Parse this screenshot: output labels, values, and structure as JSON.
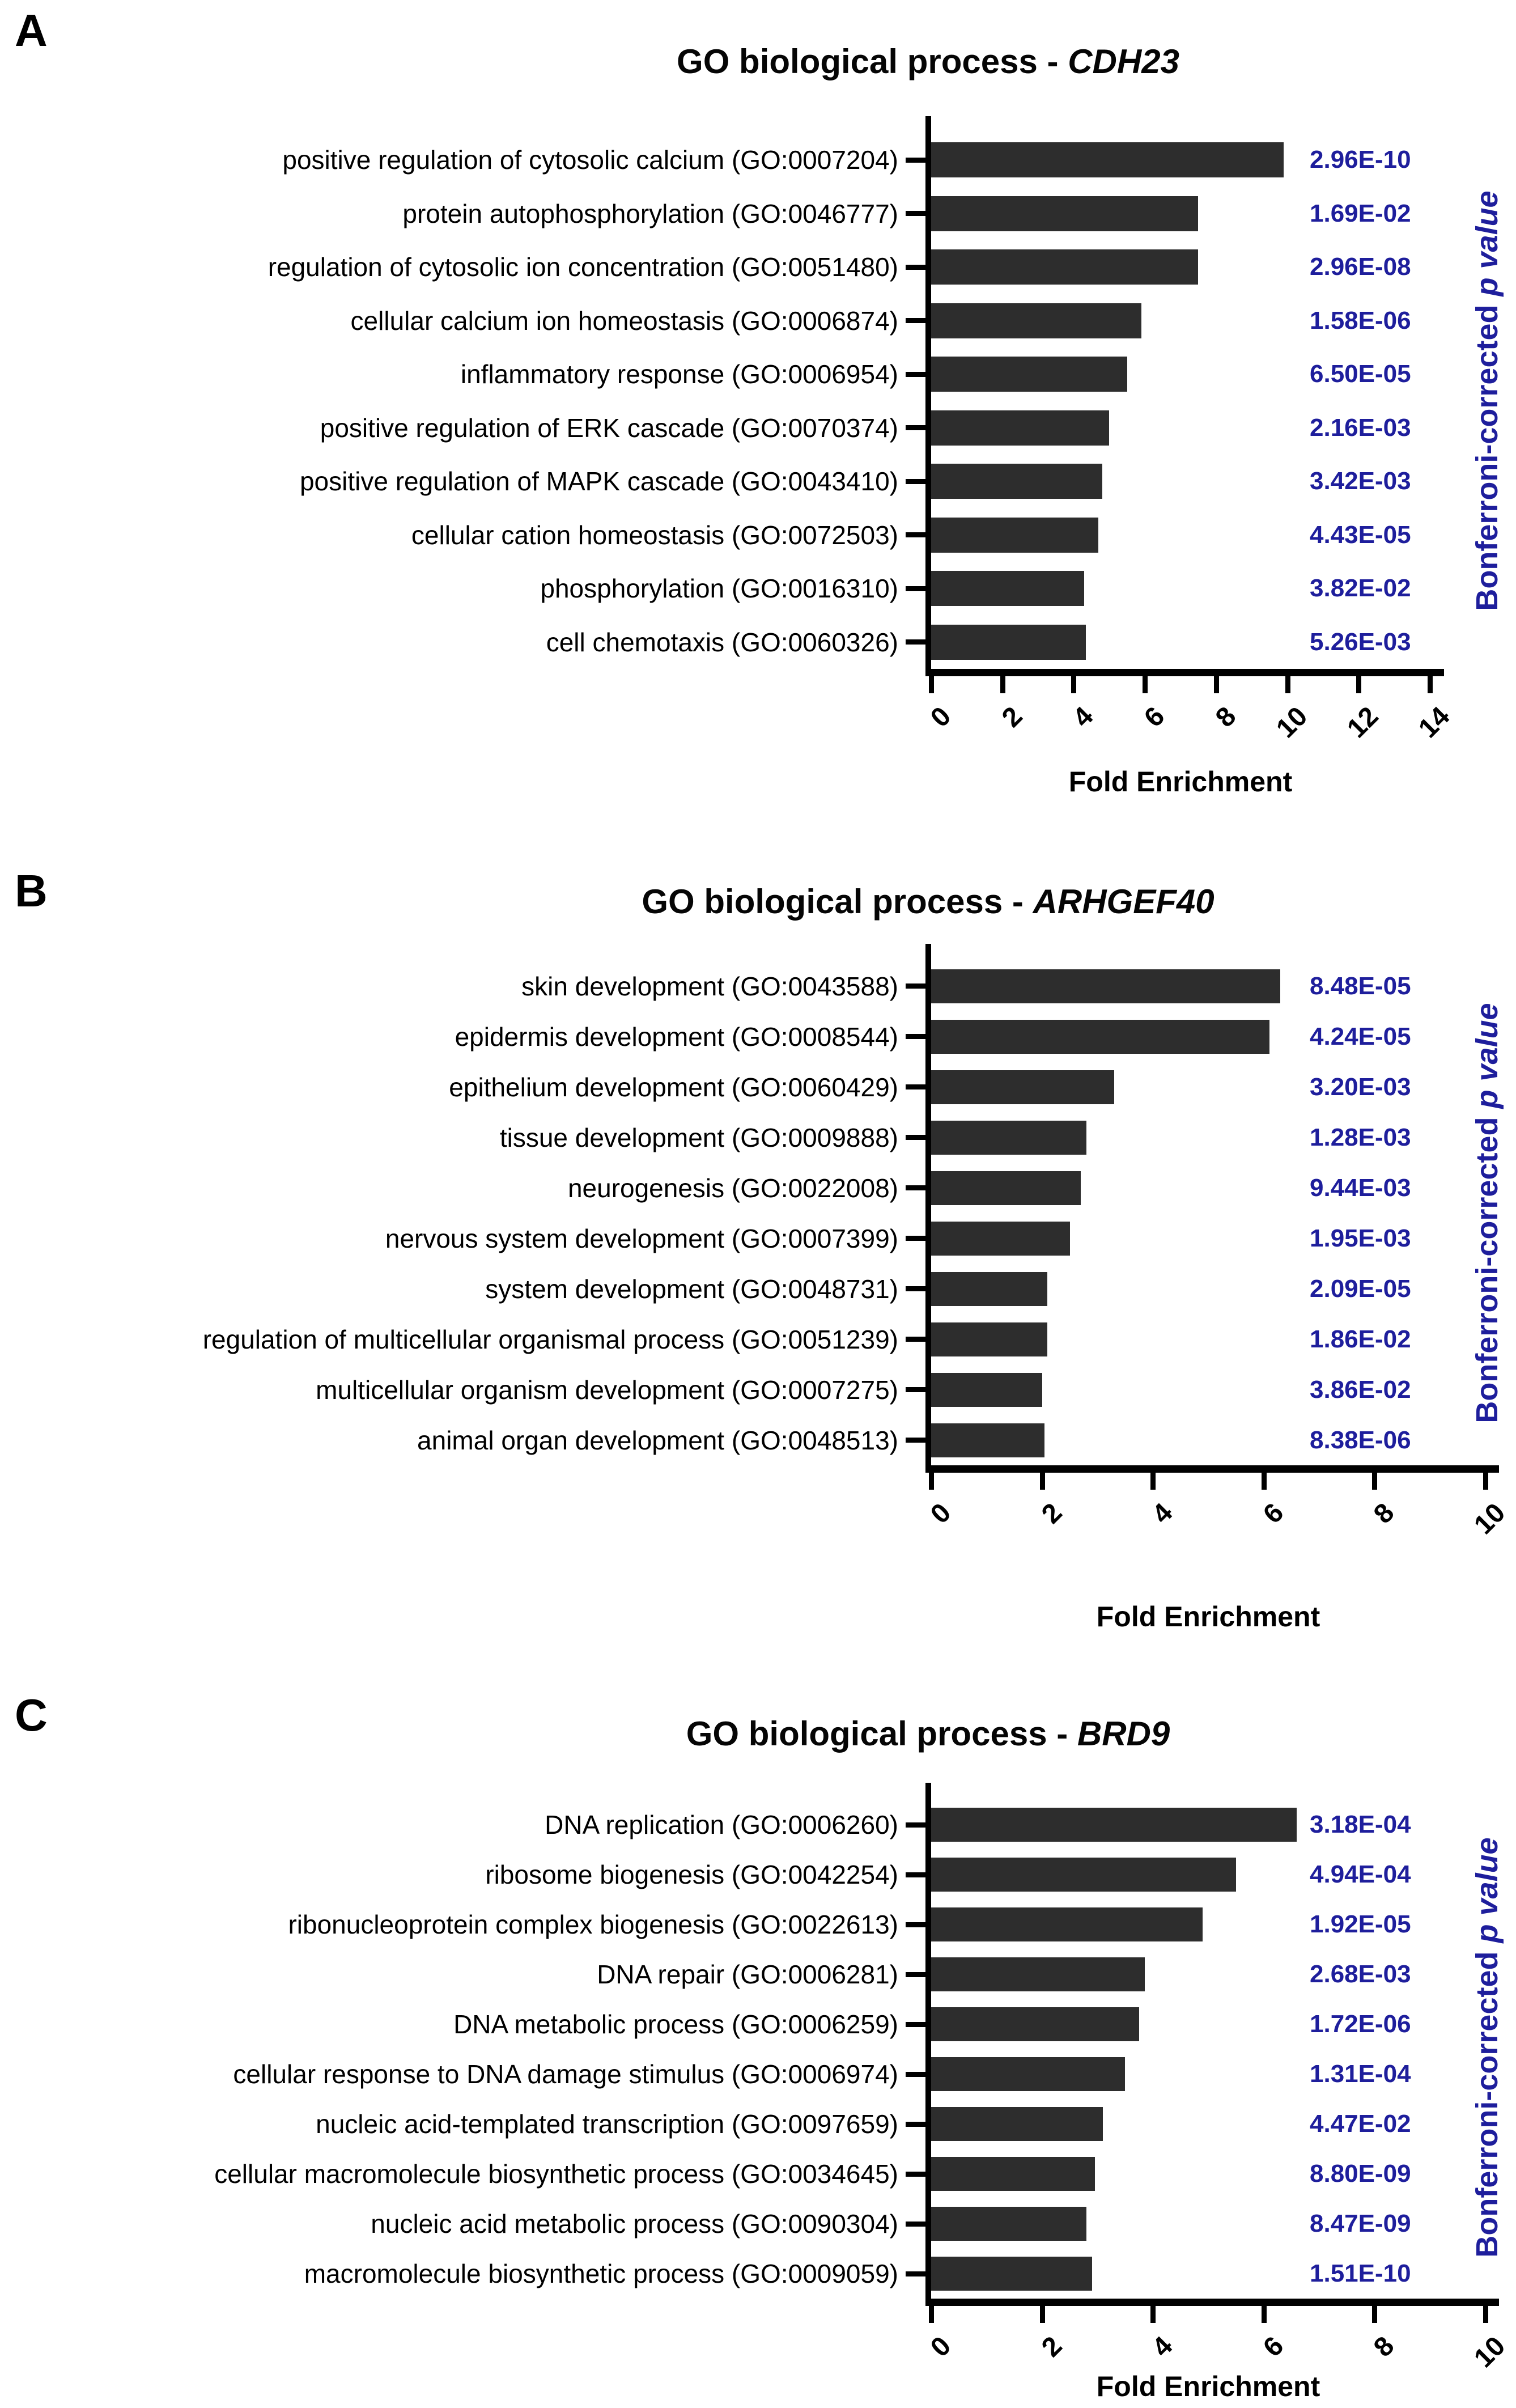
{
  "figure": {
    "panel_letters": [
      "A",
      "B",
      "C"
    ],
    "x_axis_label": "Fold Enrichment",
    "right_axis_label": "Bonferroni-corrected p value",
    "bar_color": "#2d2d2d",
    "p_value_color": "#1e1e9c",
    "axis_color": "#000000"
  },
  "chart_data": [
    {
      "type": "bar",
      "panel_letter": "A",
      "title": "GO biological process - CDH23",
      "title_prefix": "GO biological process - ",
      "gene": "CDH23",
      "orientation": "horizontal",
      "categories": [
        "positive regulation of cytosolic calcium (GO:0007204)",
        "protein autophosphorylation (GO:0046777)",
        "regulation of cytosolic ion concentration (GO:0051480)",
        "cellular calcium ion homeostasis (GO:0006874)",
        "inflammatory response (GO:0006954)",
        "positive regulation of ERK cascade (GO:0070374)",
        "positive regulation of MAPK cascade (GO:0043410)",
        "cellular cation homeostasis (GO:0072503)",
        "phosphorylation (GO:0016310)",
        "cell chemotaxis (GO:0060326)"
      ],
      "values": [
        9.9,
        7.5,
        7.5,
        5.9,
        5.5,
        5.0,
        4.8,
        4.7,
        4.3,
        4.35
      ],
      "p_value_labels": [
        "2.96E-10",
        "1.69E-02",
        "2.96E-08",
        "1.58E-06",
        "6.50E-05",
        "2.16E-03",
        "3.42E-03",
        "4.43E-05",
        "3.82E-02",
        "5.26E-03"
      ],
      "xlabel": "Fold Enrichment",
      "right_axis_label_plain": "Bonferroni-corrected",
      "right_axis_label_italic": "p value",
      "xlim": [
        0,
        14
      ],
      "xticks": [
        0,
        2,
        4,
        6,
        8,
        10,
        12,
        14
      ],
      "bar_color": "#2d2d2d",
      "p_value_color": "#1e1e9c",
      "grid": false,
      "legend": "none"
    },
    {
      "type": "bar",
      "panel_letter": "B",
      "title": "GO biological process - ARHGEF40",
      "title_prefix": "GO biological process - ",
      "gene": "ARHGEF40",
      "orientation": "horizontal",
      "categories": [
        "skin development (GO:0043588)",
        "epidermis development (GO:0008544)",
        "epithelium development (GO:0060429)",
        "tissue development (GO:0009888)",
        "neurogenesis (GO:0022008)",
        "nervous system development (GO:0007399)",
        "system development (GO:0048731)",
        "regulation of multicellular organismal process (GO:0051239)",
        "multicellular organism development (GO:0007275)",
        "animal organ development (GO:0048513)"
      ],
      "values": [
        6.3,
        6.1,
        3.3,
        2.8,
        2.7,
        2.5,
        2.1,
        2.1,
        2.0,
        2.05
      ],
      "p_value_labels": [
        "8.48E-05",
        "4.24E-05",
        "3.20E-03",
        "1.28E-03",
        "9.44E-03",
        "1.95E-03",
        "2.09E-05",
        "1.86E-02",
        "3.86E-02",
        "8.38E-06"
      ],
      "xlabel": "Fold Enrichment",
      "right_axis_label_plain": "Bonferroni-corrected",
      "right_axis_label_italic": "p value",
      "xlim": [
        0,
        10
      ],
      "xticks": [
        0,
        2,
        4,
        6,
        8,
        10
      ],
      "bar_color": "#2d2d2d",
      "p_value_color": "#1e1e9c",
      "grid": false,
      "legend": "none"
    },
    {
      "type": "bar",
      "panel_letter": "C",
      "title": "GO biological process - BRD9",
      "title_prefix": "GO biological process - ",
      "gene": "BRD9",
      "orientation": "horizontal",
      "categories": [
        "DNA replication (GO:0006260)",
        "ribosome biogenesis (GO:0042254)",
        "ribonucleoprotein complex biogenesis (GO:0022613)",
        "DNA repair (GO:0006281)",
        "DNA metabolic process (GO:0006259)",
        "cellular response to DNA damage stimulus (GO:0006974)",
        "nucleic acid-templated transcription (GO:0097659)",
        "cellular macromolecule biosynthetic process (GO:0034645)",
        "nucleic acid metabolic process (GO:0090304)",
        "macromolecule biosynthetic process (GO:0009059)"
      ],
      "values": [
        6.6,
        5.5,
        4.9,
        3.85,
        3.75,
        3.5,
        3.1,
        2.95,
        2.8,
        2.9
      ],
      "p_value_labels": [
        "3.18E-04",
        "4.94E-04",
        "1.92E-05",
        "2.68E-03",
        "1.72E-06",
        "1.31E-04",
        "4.47E-02",
        "8.80E-09",
        "8.47E-09",
        "1.51E-10"
      ],
      "xlabel": "Fold Enrichment",
      "right_axis_label_plain": "Bonferroni-corrected",
      "right_axis_label_italic": "p value",
      "xlim": [
        0,
        10
      ],
      "xticks": [
        0,
        2,
        4,
        6,
        8,
        10
      ],
      "bar_color": "#2d2d2d",
      "p_value_color": "#1e1e9c",
      "grid": false,
      "legend": "none"
    }
  ]
}
